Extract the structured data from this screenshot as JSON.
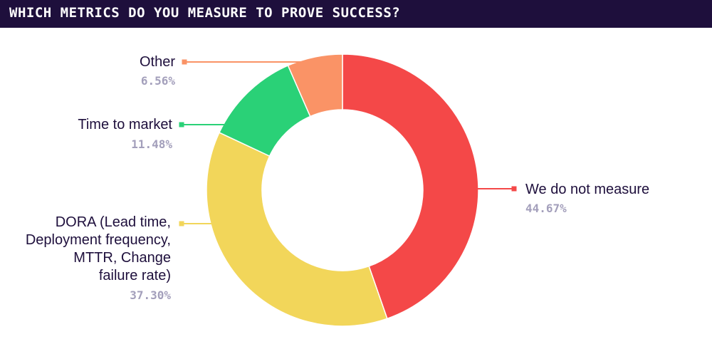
{
  "title": "WHICH METRICS DO YOU MEASURE TO PROVE SUCCESS?",
  "colors": {
    "title_bar": "#1e0f3c",
    "label_text": "#1e0f3c",
    "percent_text": "#a39fbb"
  },
  "chart_data": {
    "type": "pie",
    "donut": true,
    "start": "top, clockwise",
    "slices": [
      {
        "label_lines": [
          "We do not measure"
        ],
        "value": 44.67,
        "value_label": "44.67%",
        "color": "#f44848"
      },
      {
        "label_lines": [
          "DORA (Lead time,",
          "Deployment frequency,",
          "MTTR, Change",
          "failure rate)"
        ],
        "value": 37.3,
        "value_label": "37.30%",
        "color": "#f2d65a"
      },
      {
        "label_lines": [
          "Time to market"
        ],
        "value": 11.48,
        "value_label": "11.48%",
        "color": "#2ad177"
      },
      {
        "label_lines": [
          "Other"
        ],
        "value": 6.56,
        "value_label": "6.56%",
        "color": "#fa9366"
      }
    ]
  }
}
